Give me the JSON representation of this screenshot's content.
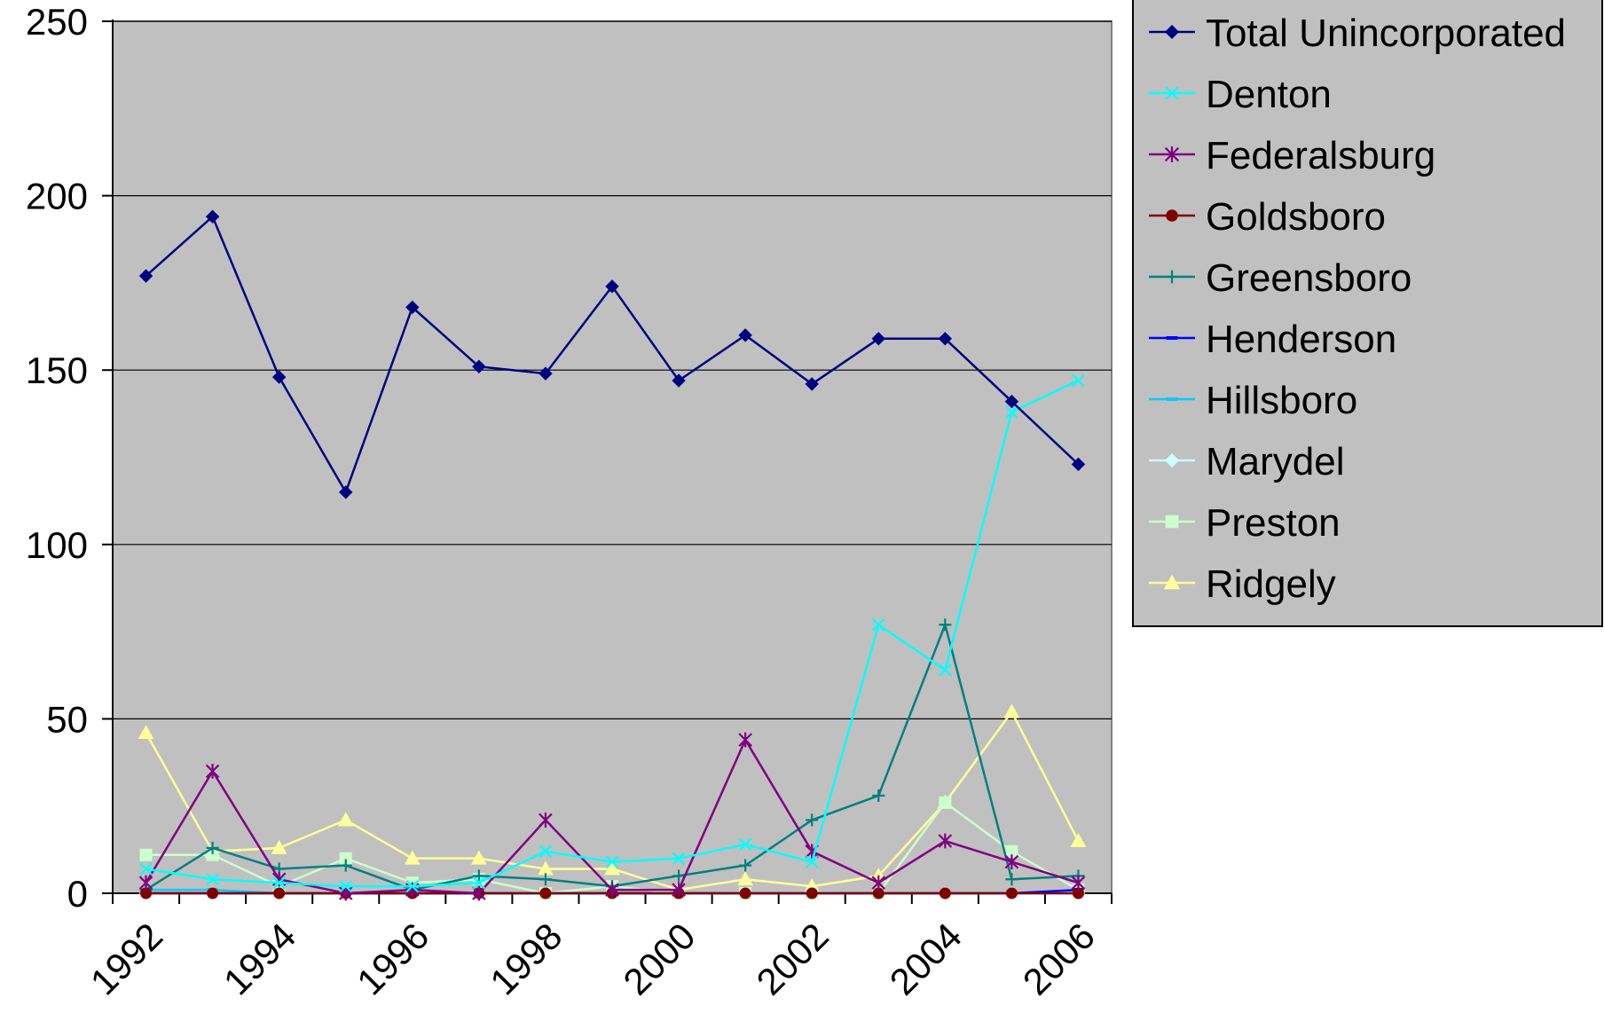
{
  "chart_data": {
    "type": "line",
    "x": [
      1992,
      1993,
      1994,
      1995,
      1996,
      1997,
      1998,
      1999,
      2000,
      2001,
      2002,
      2003,
      2004,
      2005,
      2006
    ],
    "x_tick_labels": [
      "1992",
      "1994",
      "1996",
      "1998",
      "2000",
      "2002",
      "2004",
      "2006"
    ],
    "y_tick_labels": [
      "0",
      "50",
      "100",
      "150",
      "200",
      "250"
    ],
    "ylim": [
      0,
      250
    ],
    "grid": true,
    "plot_background": "#c0c0c0",
    "legend_position": "right",
    "series": [
      {
        "name": "Total Unincorporated",
        "color": "#000080",
        "marker": "diamond",
        "values": [
          177,
          194,
          148,
          115,
          168,
          151,
          149,
          174,
          147,
          160,
          146,
          159,
          159,
          141,
          123
        ]
      },
      {
        "name": "Denton",
        "color": "#00ffff",
        "marker": "x",
        "values": [
          7,
          4,
          3,
          2,
          2,
          3,
          12,
          9,
          10,
          14,
          9,
          77,
          64,
          138,
          147
        ]
      },
      {
        "name": "Federalsburg",
        "color": "#800080",
        "marker": "star",
        "values": [
          3,
          35,
          4,
          0,
          1,
          0,
          21,
          1,
          1,
          44,
          12,
          3,
          15,
          9,
          3
        ]
      },
      {
        "name": "Goldsboro",
        "color": "#800000",
        "marker": "circle",
        "values": [
          0,
          0,
          0,
          0,
          0,
          0,
          0,
          0,
          0,
          0,
          0,
          0,
          0,
          0,
          0
        ]
      },
      {
        "name": "Greensboro",
        "color": "#008080",
        "marker": "plus",
        "values": [
          1,
          13,
          7,
          8,
          1,
          5,
          4,
          2,
          5,
          8,
          21,
          28,
          77,
          4,
          5
        ]
      },
      {
        "name": "Henderson",
        "color": "#0000ff",
        "marker": "dash",
        "values": [
          0,
          0,
          0,
          0,
          0,
          0,
          0,
          0,
          0,
          0,
          0,
          0,
          0,
          0,
          1
        ]
      },
      {
        "name": "Hillsboro",
        "color": "#00ccff",
        "marker": "dash",
        "values": [
          1,
          1,
          0,
          0,
          0,
          0,
          0,
          0,
          0,
          0,
          0,
          0,
          0,
          0,
          0
        ]
      },
      {
        "name": "Marydel",
        "color": "#ccffff",
        "marker": "diamond",
        "values": [
          0,
          0,
          0,
          0,
          0,
          0,
          0,
          0,
          0,
          0,
          0,
          0,
          0,
          0,
          0
        ]
      },
      {
        "name": "Preston",
        "color": "#ccffcc",
        "marker": "square",
        "values": [
          11,
          11,
          2,
          10,
          3,
          4,
          0,
          2,
          0,
          0,
          0,
          0,
          26,
          12,
          1
        ]
      },
      {
        "name": "Ridgely",
        "color": "#ffff99",
        "marker": "triangle",
        "values": [
          46,
          12,
          13,
          21,
          10,
          10,
          7,
          7,
          1,
          4,
          2,
          5,
          26,
          52,
          15
        ]
      }
    ]
  }
}
